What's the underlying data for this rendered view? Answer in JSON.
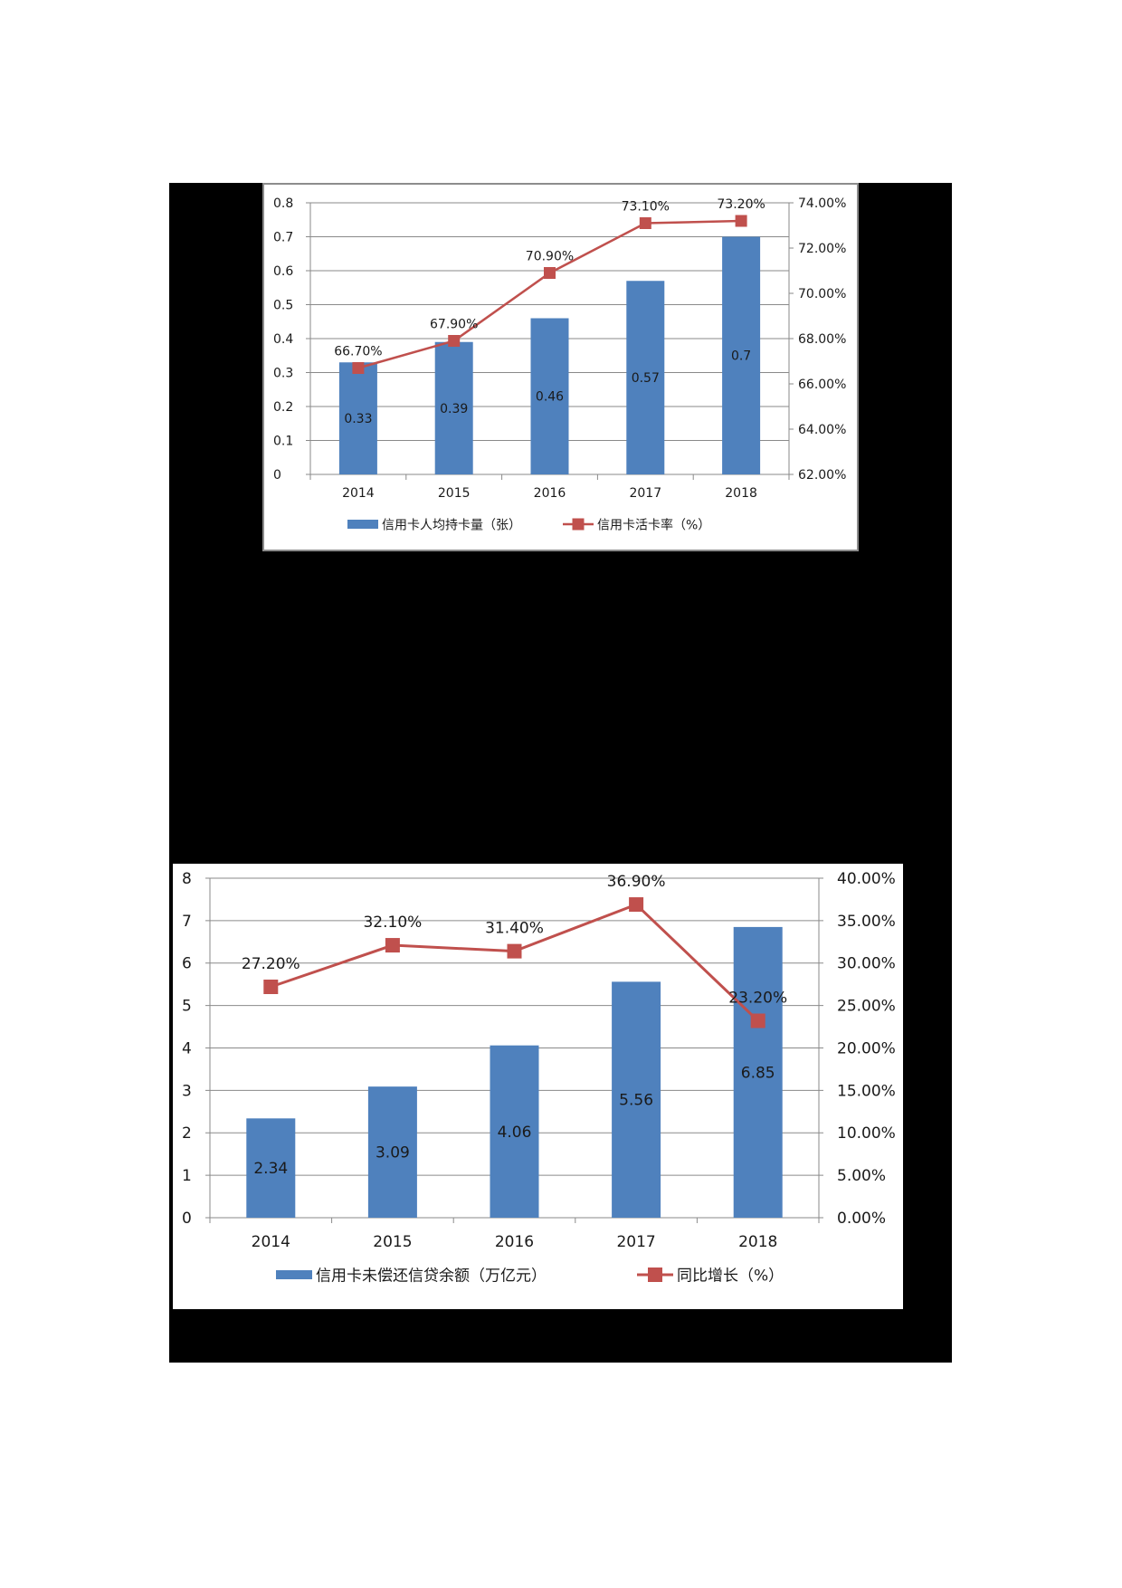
{
  "chart_data": [
    {
      "type": "bar+line",
      "title": "",
      "categories": [
        "2014",
        "2015",
        "2016",
        "2017",
        "2018"
      ],
      "series": [
        {
          "name": "信用卡人均持卡量（张）",
          "type": "bar",
          "axis": "left",
          "values": [
            0.33,
            0.39,
            0.46,
            0.57,
            0.7
          ],
          "labels": [
            "0.33",
            "0.39",
            "0.46",
            "0.57",
            "0.7"
          ],
          "color": "#4f81bd"
        },
        {
          "name": "信用卡活卡率（%）",
          "type": "line",
          "axis": "right",
          "values": [
            66.7,
            67.9,
            70.9,
            73.1,
            73.2
          ],
          "labels": [
            "66.70%",
            "67.90%",
            "70.90%",
            "73.10%",
            "73.20%"
          ],
          "color": "#c0504d"
        }
      ],
      "left_axis": {
        "min": 0,
        "max": 0.8,
        "step": 0.1,
        "ticks": [
          "0",
          "0.1",
          "0.2",
          "0.3",
          "0.4",
          "0.5",
          "0.6",
          "0.7",
          "0.8"
        ]
      },
      "right_axis": {
        "min": 62,
        "max": 74,
        "step": 2,
        "ticks": [
          "62.00%",
          "64.00%",
          "66.00%",
          "68.00%",
          "70.00%",
          "72.00%",
          "74.00%"
        ]
      },
      "xlabel": "",
      "ylabel": "",
      "grid": true,
      "legend_position": "bottom"
    },
    {
      "type": "bar+line",
      "title": "",
      "categories": [
        "2014",
        "2015",
        "2016",
        "2017",
        "2018"
      ],
      "series": [
        {
          "name": "信用卡未偿还信贷余额（万亿元）",
          "type": "bar",
          "axis": "left",
          "values": [
            2.34,
            3.09,
            4.06,
            5.56,
            6.85
          ],
          "labels": [
            "2.34",
            "3.09",
            "4.06",
            "5.56",
            "6.85"
          ],
          "color": "#4f81bd"
        },
        {
          "name": "同比增长（%）",
          "type": "line",
          "axis": "right",
          "values": [
            27.2,
            32.1,
            31.4,
            36.9,
            23.2
          ],
          "labels": [
            "27.20%",
            "32.10%",
            "31.40%",
            "36.90%",
            "23.20%"
          ],
          "color": "#c0504d"
        }
      ],
      "left_axis": {
        "min": 0,
        "max": 8,
        "step": 1,
        "ticks": [
          "0",
          "1",
          "2",
          "3",
          "4",
          "5",
          "6",
          "7",
          "8"
        ]
      },
      "right_axis": {
        "min": 0,
        "max": 40,
        "step": 5,
        "ticks": [
          "0.00%",
          "5.00%",
          "10.00%",
          "15.00%",
          "20.00%",
          "25.00%",
          "30.00%",
          "35.00%",
          "40.00%"
        ]
      },
      "xlabel": "",
      "ylabel": "",
      "grid": true,
      "legend_position": "bottom"
    }
  ]
}
